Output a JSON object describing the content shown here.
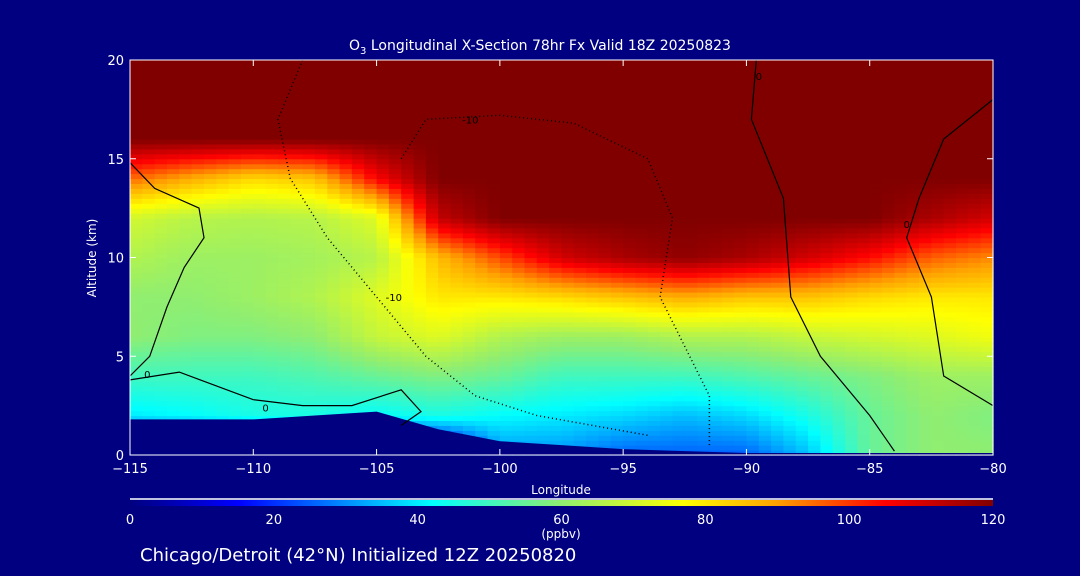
{
  "chart_data": {
    "type": "heatmap",
    "title_prefix": "O",
    "title_sub": "3",
    "title_rest": " Longitudinal X-Section 78hr  Fx Valid 18Z 20250823",
    "xlabel": "Longitude",
    "ylabel": "Altitude (km)",
    "xlim": [
      -115,
      -80
    ],
    "ylim": [
      0,
      20
    ],
    "x_ticks": [
      -115,
      -110,
      -105,
      -100,
      -95,
      -90,
      -85,
      -80
    ],
    "x_tick_labels": [
      "−115",
      "−110",
      "−105",
      "−100",
      "−95",
      "−90",
      "−85",
      "−80"
    ],
    "y_ticks": [
      0,
      5,
      10,
      15,
      20
    ],
    "y_tick_labels": [
      "0",
      "5",
      "10",
      "15",
      "20"
    ],
    "longitudes": [
      -115,
      -112.5,
      -110,
      -107.5,
      -105,
      -102.5,
      -100,
      -97.5,
      -95,
      -92.5,
      -90,
      -87.5,
      -85,
      -82.5,
      -80
    ],
    "altitudes": [
      0,
      2,
      4,
      6,
      8,
      10,
      12,
      14,
      16,
      18,
      20
    ],
    "ozone_ppbv": [
      [
        0,
        40,
        50,
        60,
        60,
        65,
        70,
        95,
        120,
        120,
        120
      ],
      [
        0,
        42,
        50,
        58,
        60,
        62,
        66,
        88,
        120,
        120,
        120
      ],
      [
        0,
        45,
        50,
        58,
        62,
        62,
        65,
        82,
        120,
        120,
        120
      ],
      [
        0,
        45,
        52,
        60,
        65,
        63,
        66,
        85,
        120,
        120,
        120
      ],
      [
        0,
        42,
        55,
        68,
        72,
        66,
        72,
        105,
        120,
        120,
        120
      ],
      [
        0,
        45,
        58,
        72,
        80,
        86,
        112,
        120,
        120,
        120,
        120
      ],
      [
        30,
        42,
        55,
        65,
        80,
        98,
        120,
        120,
        120,
        120,
        120
      ],
      [
        30,
        40,
        50,
        62,
        82,
        110,
        120,
        120,
        120,
        120,
        120
      ],
      [
        25,
        38,
        50,
        62,
        85,
        115,
        120,
        120,
        120,
        120,
        120
      ],
      [
        25,
        35,
        50,
        65,
        88,
        118,
        120,
        120,
        120,
        120,
        120
      ],
      [
        25,
        38,
        52,
        65,
        85,
        115,
        120,
        120,
        120,
        120,
        120
      ],
      [
        35,
        45,
        55,
        68,
        85,
        110,
        120,
        120,
        120,
        120,
        120
      ],
      [
        55,
        55,
        58,
        70,
        82,
        104,
        120,
        120,
        120,
        120,
        120
      ],
      [
        60,
        60,
        62,
        72,
        80,
        96,
        115,
        120,
        120,
        120,
        120
      ],
      [
        60,
        58,
        62,
        75,
        80,
        92,
        110,
        120,
        120,
        120,
        120
      ]
    ],
    "terrain_km": [
      1.8,
      1.8,
      1.8,
      2.0,
      2.2,
      1.3,
      0.7,
      0.5,
      0.3,
      0.2,
      0.1,
      0.1,
      0.1,
      0.1,
      0.1
    ],
    "contours": [
      {
        "label": "0",
        "style": "solid",
        "label_at": [
          -114.3,
          4.1
        ],
        "points": [
          [
            -115,
            14.8
          ],
          [
            -114,
            13.5
          ],
          [
            -112.2,
            12.5
          ],
          [
            -112,
            11
          ],
          [
            -112.8,
            9.5
          ],
          [
            -113.5,
            7.5
          ],
          [
            -114.2,
            5
          ],
          [
            -115,
            4
          ]
        ]
      },
      {
        "label": "0",
        "style": "solid",
        "label_at": [
          -109.5,
          2.4
        ],
        "points": [
          [
            -115,
            3.8
          ],
          [
            -113,
            4.2
          ],
          [
            -110,
            2.8
          ],
          [
            -108,
            2.5
          ],
          [
            -106,
            2.5
          ],
          [
            -104,
            3.3
          ],
          [
            -103.2,
            2.2
          ],
          [
            -104,
            1.5
          ]
        ]
      },
      {
        "label": "-10",
        "style": "dotted",
        "label_at": [
          -104.3,
          8
        ],
        "points": [
          [
            -108,
            20
          ],
          [
            -109,
            17
          ],
          [
            -108.5,
            14
          ],
          [
            -107,
            11
          ],
          [
            -105,
            8
          ],
          [
            -103,
            5
          ],
          [
            -101,
            3
          ],
          [
            -98.5,
            2
          ],
          [
            -94,
            1
          ]
        ]
      },
      {
        "label": "-10",
        "style": "dotted",
        "label_at": [
          -101.2,
          17
        ],
        "points": [
          [
            -104,
            15
          ],
          [
            -103,
            17
          ],
          [
            -100,
            17.2
          ],
          [
            -97,
            16.8
          ],
          [
            -94,
            15
          ],
          [
            -93,
            12
          ],
          [
            -93.5,
            8
          ],
          [
            -91.5,
            3
          ],
          [
            -91.5,
            0.5
          ]
        ]
      },
      {
        "label": "0",
        "style": "solid",
        "label_at": [
          -89.5,
          19.2
        ],
        "points": [
          [
            -89.6,
            20
          ],
          [
            -89.8,
            17
          ],
          [
            -88.5,
            13
          ],
          [
            -88.2,
            8
          ],
          [
            -87,
            5
          ],
          [
            -85,
            2
          ],
          [
            -84,
            0.2
          ]
        ]
      },
      {
        "label": "0",
        "style": "solid",
        "label_at": [
          -83.5,
          11.7
        ],
        "points": [
          [
            -80,
            18
          ],
          [
            -82,
            16
          ],
          [
            -83,
            13
          ],
          [
            -83.5,
            11
          ],
          [
            -82.5,
            8
          ],
          [
            -82,
            4
          ],
          [
            -80,
            2.5
          ]
        ]
      }
    ],
    "colorbar": {
      "ticks": [
        0,
        20,
        40,
        60,
        80,
        100,
        120
      ],
      "tick_labels": [
        "0",
        "20",
        "40",
        "60",
        "80",
        "100",
        "120"
      ],
      "label": "(ppbv)",
      "range": [
        0,
        120
      ],
      "colors": [
        "#000080",
        "#0000ff",
        "#00ffff",
        "#90ee70",
        "#ffff00",
        "#ffa000",
        "#ff0000",
        "#800000"
      ],
      "color_stops": [
        0,
        15,
        42,
        60,
        77,
        90,
        105,
        120
      ]
    },
    "footer": "Chicago/Detroit (42°N) Initialized 12Z 20250820"
  }
}
